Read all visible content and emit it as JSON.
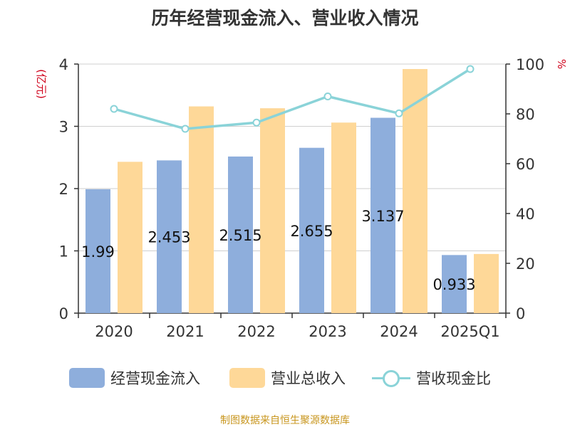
{
  "title": "历年经营现金流入、营业收入情况",
  "source": "制图数据来自恒生聚源数据库",
  "chart_data": {
    "type": "bar",
    "title": "历年经营现金流入、营业收入情况",
    "categories": [
      "2020",
      "2021",
      "2022",
      "2023",
      "2024",
      "2025Q1"
    ],
    "y_left": {
      "unit_label": "(亿元)",
      "range": [
        0,
        4
      ],
      "ticks": [
        "0",
        "1",
        "2",
        "3",
        "4"
      ]
    },
    "y_right": {
      "unit_label": "%",
      "range": [
        0,
        100
      ],
      "ticks": [
        "0",
        "20",
        "40",
        "60",
        "80",
        "100"
      ]
    },
    "series": [
      {
        "name": "经营现金流入",
        "type": "bar",
        "axis": "left",
        "color": "#8eaedc",
        "values": [
          1.99,
          2.453,
          2.515,
          2.655,
          3.137,
          0.933
        ],
        "labels": [
          "1.99",
          "2.453",
          "2.515",
          "2.655",
          "3.137",
          "0.933"
        ]
      },
      {
        "name": "营业总收入",
        "type": "bar",
        "axis": "left",
        "color": "#fed898",
        "values": [
          2.43,
          3.32,
          3.29,
          3.06,
          3.92,
          0.95
        ]
      },
      {
        "name": "营收现金比",
        "type": "line",
        "axis": "right",
        "color": "#8ad3d8",
        "values": [
          82,
          74,
          76.5,
          87,
          80.2,
          98
        ]
      }
    ],
    "grid": true,
    "legend": "bottom"
  }
}
